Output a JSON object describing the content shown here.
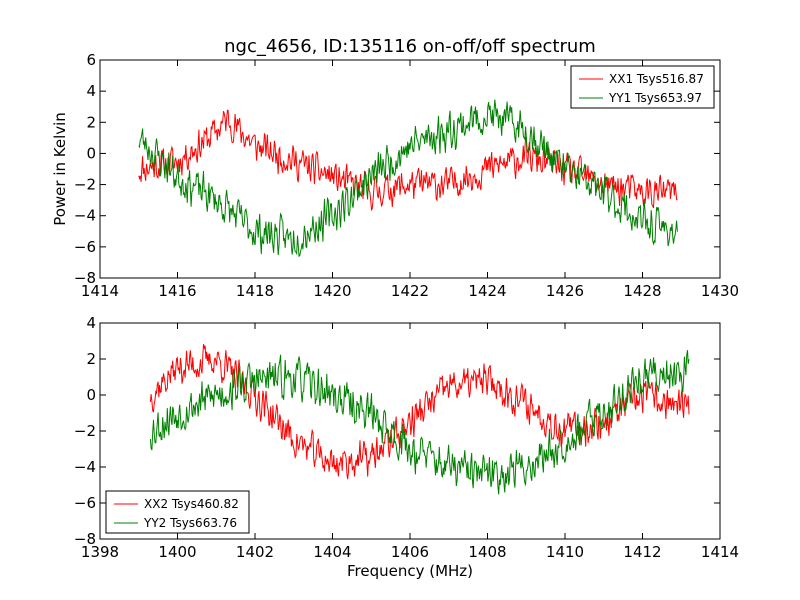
{
  "chart_data": [
    {
      "type": "line",
      "title": "ngc_4656, ID:135116 on-off/off spectrum",
      "xlabel": "",
      "ylabel": "Power in Kelvin",
      "xlim": [
        1414,
        1430
      ],
      "ylim": [
        -8,
        6
      ],
      "xticks": [
        1414,
        1416,
        1418,
        1420,
        1422,
        1424,
        1426,
        1428,
        1430
      ],
      "yticks": [
        -8,
        -6,
        -4,
        -2,
        0,
        2,
        4,
        6
      ],
      "legend_position": "upper-right",
      "series": [
        {
          "name": "XX1 Tsys516.87",
          "color": "#ff0000",
          "x_range": [
            1415.0,
            1428.9
          ],
          "noise": 1.3,
          "seed": 11,
          "trend": [
            [
              1415.0,
              -1.0
            ],
            [
              1416.0,
              -0.5
            ],
            [
              1416.8,
              1.0
            ],
            [
              1417.3,
              2.2
            ],
            [
              1418.0,
              0.5
            ],
            [
              1419.0,
              -0.5
            ],
            [
              1420.0,
              -1.5
            ],
            [
              1421.0,
              -2.5
            ],
            [
              1422.0,
              -2.0
            ],
            [
              1423.0,
              -2.0
            ],
            [
              1424.0,
              -1.0
            ],
            [
              1425.0,
              -0.2
            ],
            [
              1426.0,
              -1.0
            ],
            [
              1427.0,
              -2.0
            ],
            [
              1428.0,
              -2.5
            ],
            [
              1428.9,
              -2.5
            ]
          ]
        },
        {
          "name": "YY1 Tsys653.97",
          "color": "#008000",
          "x_range": [
            1415.0,
            1428.9
          ],
          "noise": 1.5,
          "seed": 23,
          "trend": [
            [
              1415.0,
              1.0
            ],
            [
              1416.0,
              -1.5
            ],
            [
              1417.0,
              -3.0
            ],
            [
              1418.0,
              -5.0
            ],
            [
              1419.0,
              -5.5
            ],
            [
              1420.0,
              -4.0
            ],
            [
              1421.0,
              -1.5
            ],
            [
              1422.0,
              0.5
            ],
            [
              1423.0,
              1.5
            ],
            [
              1424.0,
              2.5
            ],
            [
              1425.0,
              1.5
            ],
            [
              1426.0,
              -1.0
            ],
            [
              1427.0,
              -2.5
            ],
            [
              1428.0,
              -4.5
            ],
            [
              1428.9,
              -5.0
            ]
          ]
        }
      ]
    },
    {
      "type": "line",
      "title": "",
      "xlabel": "Frequency (MHz)",
      "ylabel": "",
      "xlim": [
        1398,
        1414
      ],
      "ylim": [
        -8,
        4
      ],
      "xticks": [
        1398,
        1400,
        1402,
        1404,
        1406,
        1408,
        1410,
        1412,
        1414
      ],
      "yticks": [
        -8,
        -6,
        -4,
        -2,
        0,
        2,
        4
      ],
      "legend_position": "lower-left",
      "series": [
        {
          "name": "XX2 Tsys460.82",
          "color": "#ff0000",
          "x_range": [
            1399.3,
            1413.2
          ],
          "noise": 1.2,
          "seed": 37,
          "trend": [
            [
              1399.3,
              0.0
            ],
            [
              1400.0,
              1.5
            ],
            [
              1401.0,
              2.0
            ],
            [
              1402.0,
              0.0
            ],
            [
              1403.0,
              -2.5
            ],
            [
              1404.0,
              -3.8
            ],
            [
              1405.0,
              -3.5
            ],
            [
              1406.0,
              -1.5
            ],
            [
              1407.0,
              0.5
            ],
            [
              1408.0,
              0.8
            ],
            [
              1409.0,
              -0.5
            ],
            [
              1410.0,
              -2.0
            ],
            [
              1411.0,
              -1.5
            ],
            [
              1412.0,
              0.0
            ],
            [
              1413.2,
              -0.8
            ]
          ]
        },
        {
          "name": "YY2 Tsys663.76",
          "color": "#008000",
          "x_range": [
            1399.3,
            1413.2
          ],
          "noise": 1.4,
          "seed": 53,
          "trend": [
            [
              1399.3,
              -2.0
            ],
            [
              1400.0,
              -1.0
            ],
            [
              1401.0,
              0.0
            ],
            [
              1402.0,
              0.8
            ],
            [
              1403.0,
              1.0
            ],
            [
              1404.0,
              0.0
            ],
            [
              1405.0,
              -1.0
            ],
            [
              1406.0,
              -3.0
            ],
            [
              1407.0,
              -4.0
            ],
            [
              1408.0,
              -4.5
            ],
            [
              1409.0,
              -4.0
            ],
            [
              1410.0,
              -2.5
            ],
            [
              1411.0,
              -1.0
            ],
            [
              1412.0,
              1.0
            ],
            [
              1413.2,
              1.5
            ]
          ]
        }
      ]
    }
  ]
}
